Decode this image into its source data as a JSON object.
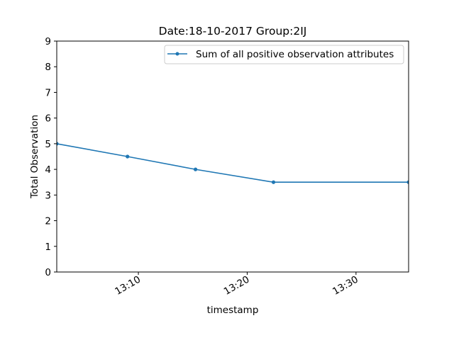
{
  "chart_data": {
    "type": "line",
    "title": "Date:18-10-2017  Group:2IJ",
    "xlabel": "timestamp",
    "ylabel": "Total Observation",
    "x_axis_type": "time",
    "xlim": [
      "13:02:30",
      "13:34:50"
    ],
    "ylim": [
      0,
      9
    ],
    "x_ticks": [
      "13:10",
      "13:20",
      "13:30"
    ],
    "y_ticks": [
      0,
      1,
      2,
      3,
      4,
      5,
      6,
      7,
      8,
      9
    ],
    "grid": false,
    "legend_position": "top-right",
    "series": [
      {
        "name": "Sum of all positive observation attributes",
        "color": "#1f77b4",
        "marker": "dot",
        "x": [
          "13:02:30",
          "13:09:00",
          "13:15:15",
          "13:22:25",
          "13:34:50"
        ],
        "y": [
          5.0,
          4.5,
          4.0,
          3.5,
          3.5
        ]
      }
    ]
  }
}
